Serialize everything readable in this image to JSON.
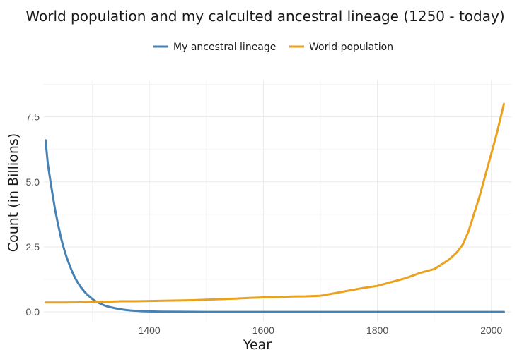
{
  "chart_data": {
    "type": "line",
    "title": "World population and my calculted ancestral lineage (1250 - today)",
    "xlabel": "Year",
    "ylabel": "Count (in Billions)",
    "xlim": [
      1215,
      2035
    ],
    "ylim": [
      -0.35,
      8.9
    ],
    "x_ticks": [
      1400,
      1600,
      1800,
      2000
    ],
    "x_tick_labels": [
      "1400",
      "1600",
      "1800",
      "2000"
    ],
    "x_minor_ticks": [
      1300,
      1500,
      1700,
      1900
    ],
    "y_ticks": [
      0,
      2.5,
      5,
      7.5
    ],
    "y_tick_labels": [
      "0.0",
      "2.5",
      "5.0",
      "7.5"
    ],
    "y_minor_ticks": [
      1.25,
      3.75,
      6.25,
      8.75
    ],
    "grid": true,
    "legend_position": "top-center",
    "series": [
      {
        "name": "My ancestral lineage",
        "color": "#4682b4",
        "x": [
          1218,
          1222,
          1226,
          1230,
          1235,
          1240,
          1245,
          1250,
          1255,
          1260,
          1265,
          1270,
          1275,
          1280,
          1285,
          1290,
          1295,
          1300,
          1305,
          1310,
          1315,
          1320,
          1325,
          1330,
          1340,
          1350,
          1360,
          1370,
          1380,
          1390,
          1400,
          1420,
          1450,
          1500,
          1600,
          1700,
          1800,
          1900,
          2000,
          2022
        ],
        "y": [
          6.6,
          5.7,
          5.1,
          4.55,
          3.9,
          3.35,
          2.85,
          2.45,
          2.1,
          1.8,
          1.53,
          1.3,
          1.11,
          0.95,
          0.81,
          0.69,
          0.59,
          0.5,
          0.42,
          0.36,
          0.31,
          0.26,
          0.22,
          0.19,
          0.14,
          0.1,
          0.07,
          0.05,
          0.035,
          0.025,
          0.018,
          0.009,
          0.004,
          0.001,
          0,
          0,
          0,
          0,
          0,
          0
        ]
      },
      {
        "name": "World population",
        "color": "#e9a11e",
        "x": [
          1218,
          1250,
          1275,
          1300,
          1325,
          1350,
          1375,
          1400,
          1425,
          1450,
          1475,
          1500,
          1525,
          1550,
          1575,
          1600,
          1625,
          1650,
          1675,
          1700,
          1725,
          1750,
          1775,
          1800,
          1825,
          1850,
          1875,
          1900,
          1925,
          1940,
          1950,
          1960,
          1970,
          1980,
          1990,
          2000,
          2010,
          2022
        ],
        "y": [
          0.36,
          0.36,
          0.37,
          0.39,
          0.39,
          0.41,
          0.41,
          0.42,
          0.43,
          0.44,
          0.45,
          0.47,
          0.49,
          0.51,
          0.54,
          0.56,
          0.57,
          0.59,
          0.6,
          0.62,
          0.72,
          0.82,
          0.92,
          1.0,
          1.15,
          1.3,
          1.5,
          1.65,
          2.0,
          2.3,
          2.6,
          3.1,
          3.8,
          4.5,
          5.3,
          6.1,
          6.9,
          8.0
        ]
      }
    ]
  }
}
